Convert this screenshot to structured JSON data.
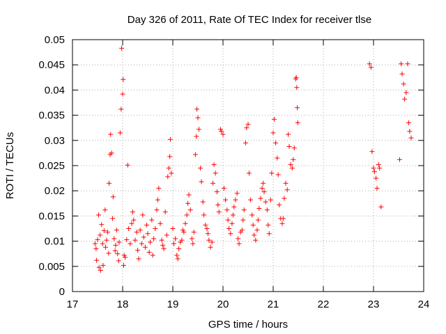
{
  "chart_data": {
    "type": "scatter",
    "title": "Day 326 of 2011, Rate Of TEC Index for receiver tlse",
    "xlabel": "GPS time / hours",
    "ylabel": "ROTI / TECUs",
    "xlim": [
      17,
      24
    ],
    "ylim": [
      0,
      0.05
    ],
    "x_ticks": [
      17,
      18,
      19,
      20,
      21,
      22,
      23,
      24
    ],
    "x_tick_labels": [
      "17",
      "18",
      "19",
      "20",
      "21",
      "22",
      "23",
      "24"
    ],
    "y_ticks": [
      0,
      0.005,
      0.01,
      0.015,
      0.02,
      0.025,
      0.03,
      0.035,
      0.04,
      0.045,
      0.05
    ],
    "y_tick_labels": [
      "0",
      "0.005",
      "0.01",
      "0.015",
      "0.02",
      "0.025",
      "0.03",
      "0.035",
      "0.04",
      "0.045",
      "0.05"
    ],
    "grid": true,
    "marker": "+",
    "marker_color": "#ff0000",
    "series": [
      {
        "name": "ROTI",
        "points": [
          [
            17.45,
            0.0095
          ],
          [
            17.47,
            0.0085
          ],
          [
            17.48,
            0.0062
          ],
          [
            17.5,
            0.0103
          ],
          [
            17.52,
            0.0152
          ],
          [
            17.53,
            0.0048
          ],
          [
            17.55,
            0.0112
          ],
          [
            17.56,
            0.0042
          ],
          [
            17.58,
            0.0133
          ],
          [
            17.6,
            0.0095
          ],
          [
            17.61,
            0.0052
          ],
          [
            17.63,
            0.0121
          ],
          [
            17.65,
            0.0162
          ],
          [
            17.66,
            0.0088
          ],
          [
            17.68,
            0.0102
          ],
          [
            17.7,
            0.0118
          ],
          [
            17.72,
            0.0076
          ],
          [
            17.73,
            0.0215
          ],
          [
            17.75,
            0.0272
          ],
          [
            17.76,
            0.0312
          ],
          [
            17.78,
            0.0275
          ],
          [
            17.8,
            0.0145
          ],
          [
            17.81,
            0.0188
          ],
          [
            17.83,
            0.0105
          ],
          [
            17.85,
            0.0081
          ],
          [
            17.86,
            0.0092
          ],
          [
            17.88,
            0.0122
          ],
          [
            17.9,
            0.0075
          ],
          [
            17.92,
            0.0061
          ],
          [
            17.93,
            0.0098
          ],
          [
            17.95,
            0.0315
          ],
          [
            17.97,
            0.0362
          ],
          [
            17.98,
            0.0483
          ],
          [
            18.0,
            0.0392
          ],
          [
            18.01,
            0.0421
          ],
          [
            18.02,
            0.0052
          ],
          [
            18.03,
            0.0072
          ],
          [
            18.05,
            0.0068
          ],
          [
            18.08,
            0.0103
          ],
          [
            18.1,
            0.0251
          ],
          [
            18.12,
            0.0125
          ],
          [
            18.15,
            0.0095
          ],
          [
            18.18,
            0.0135
          ],
          [
            18.2,
            0.0158
          ],
          [
            18.22,
            0.0142
          ],
          [
            18.25,
            0.0102
          ],
          [
            18.28,
            0.0118
          ],
          [
            18.3,
            0.0082
          ],
          [
            18.32,
            0.0065
          ],
          [
            18.35,
            0.0122
          ],
          [
            18.38,
            0.0095
          ],
          [
            18.4,
            0.0152
          ],
          [
            18.42,
            0.0108
          ],
          [
            18.45,
            0.0088
          ],
          [
            18.48,
            0.0132
          ],
          [
            18.5,
            0.0115
          ],
          [
            18.53,
            0.0078
          ],
          [
            18.55,
            0.0098
          ],
          [
            18.58,
            0.0142
          ],
          [
            18.6,
            0.0072
          ],
          [
            18.62,
            0.0105
          ],
          [
            18.65,
            0.0125
          ],
          [
            18.68,
            0.0162
          ],
          [
            18.7,
            0.0182
          ],
          [
            18.72,
            0.0205
          ],
          [
            18.75,
            0.0135
          ],
          [
            18.78,
            0.0102
          ],
          [
            18.8,
            0.0092
          ],
          [
            18.82,
            0.0085
          ],
          [
            18.85,
            0.0158
          ],
          [
            18.88,
            0.0112
          ],
          [
            18.9,
            0.0228
          ],
          [
            18.92,
            0.0245
          ],
          [
            18.94,
            0.0268
          ],
          [
            18.95,
            0.0302
          ],
          [
            18.97,
            0.0235
          ],
          [
            19.0,
            0.0125
          ],
          [
            19.02,
            0.0095
          ],
          [
            19.05,
            0.0105
          ],
          [
            19.08,
            0.0072
          ],
          [
            19.1,
            0.0065
          ],
          [
            19.12,
            0.0085
          ],
          [
            19.15,
            0.0098
          ],
          [
            19.18,
            0.0102
          ],
          [
            19.2,
            0.0122
          ],
          [
            19.22,
            0.0118
          ],
          [
            19.25,
            0.0135
          ],
          [
            19.28,
            0.0152
          ],
          [
            19.3,
            0.0175
          ],
          [
            19.32,
            0.0192
          ],
          [
            19.35,
            0.0162
          ],
          [
            19.38,
            0.0105
          ],
          [
            19.4,
            0.0095
          ],
          [
            19.42,
            0.0118
          ],
          [
            19.45,
            0.0272
          ],
          [
            19.47,
            0.0308
          ],
          [
            19.48,
            0.0362
          ],
          [
            19.5,
            0.0345
          ],
          [
            19.52,
            0.0322
          ],
          [
            19.55,
            0.0245
          ],
          [
            19.57,
            0.0218
          ],
          [
            19.6,
            0.0178
          ],
          [
            19.62,
            0.0152
          ],
          [
            19.65,
            0.0132
          ],
          [
            19.68,
            0.0125
          ],
          [
            19.7,
            0.0115
          ],
          [
            19.72,
            0.0102
          ],
          [
            19.75,
            0.0088
          ],
          [
            19.78,
            0.0098
          ],
          [
            19.8,
            0.0215
          ],
          [
            19.82,
            0.0252
          ],
          [
            19.85,
            0.0235
          ],
          [
            19.88,
            0.0198
          ],
          [
            19.9,
            0.0172
          ],
          [
            19.92,
            0.0158
          ],
          [
            19.95,
            0.0322
          ],
          [
            19.97,
            0.0318
          ],
          [
            20.0,
            0.0312
          ],
          [
            20.02,
            0.0205
          ],
          [
            20.05,
            0.0182
          ],
          [
            20.08,
            0.0162
          ],
          [
            20.1,
            0.0142
          ],
          [
            20.12,
            0.0125
          ],
          [
            20.15,
            0.0115
          ],
          [
            20.18,
            0.0135
          ],
          [
            20.2,
            0.0152
          ],
          [
            20.22,
            0.0168
          ],
          [
            20.25,
            0.0182
          ],
          [
            20.28,
            0.0195
          ],
          [
            20.3,
            0.0105
          ],
          [
            20.32,
            0.0095
          ],
          [
            20.35,
            0.0118
          ],
          [
            20.38,
            0.0122
          ],
          [
            20.4,
            0.0142
          ],
          [
            20.42,
            0.0162
          ],
          [
            20.45,
            0.0295
          ],
          [
            20.47,
            0.0325
          ],
          [
            20.5,
            0.0332
          ],
          [
            20.52,
            0.0235
          ],
          [
            20.55,
            0.0182
          ],
          [
            20.58,
            0.0152
          ],
          [
            20.6,
            0.0132
          ],
          [
            20.62,
            0.0112
          ],
          [
            20.65,
            0.0102
          ],
          [
            20.68,
            0.0122
          ],
          [
            20.7,
            0.0142
          ],
          [
            20.72,
            0.0165
          ],
          [
            20.75,
            0.0185
          ],
          [
            20.78,
            0.0205
          ],
          [
            20.8,
            0.0215
          ],
          [
            20.82,
            0.0198
          ],
          [
            20.85,
            0.0178
          ],
          [
            20.88,
            0.0162
          ],
          [
            20.9,
            0.0132
          ],
          [
            20.92,
            0.0115
          ],
          [
            20.95,
            0.0182
          ],
          [
            20.97,
            0.0235
          ],
          [
            21.0,
            0.0315
          ],
          [
            21.02,
            0.0342
          ],
          [
            21.05,
            0.0295
          ],
          [
            21.08,
            0.0265
          ],
          [
            21.1,
            0.0232
          ],
          [
            21.12,
            0.0172
          ],
          [
            21.15,
            0.0145
          ],
          [
            21.18,
            0.0135
          ],
          [
            21.2,
            0.0145
          ],
          [
            21.22,
            0.0185
          ],
          [
            21.25,
            0.0215
          ],
          [
            21.28,
            0.0202
          ],
          [
            21.3,
            0.0312
          ],
          [
            21.32,
            0.0288
          ],
          [
            21.35,
            0.0252
          ],
          [
            21.38,
            0.0245
          ],
          [
            21.4,
            0.0262
          ],
          [
            21.42,
            0.0285
          ],
          [
            21.45,
            0.0422
          ],
          [
            21.46,
            0.0425
          ],
          [
            21.47,
            0.0405
          ],
          [
            21.48,
            0.0365
          ],
          [
            21.49,
            0.0335
          ],
          [
            22.92,
            0.0452
          ],
          [
            22.95,
            0.0445
          ],
          [
            22.97,
            0.0278
          ],
          [
            23.0,
            0.0245
          ],
          [
            23.02,
            0.0238
          ],
          [
            23.05,
            0.0225
          ],
          [
            23.07,
            0.0205
          ],
          [
            23.1,
            0.0252
          ],
          [
            23.12,
            0.0245
          ],
          [
            23.15,
            0.0168
          ],
          [
            23.52,
            0.0262
          ],
          [
            23.55,
            0.0452
          ],
          [
            23.57,
            0.0432
          ],
          [
            23.6,
            0.0412
          ],
          [
            23.62,
            0.0382
          ],
          [
            23.65,
            0.0395
          ],
          [
            23.68,
            0.0452
          ],
          [
            23.7,
            0.0335
          ],
          [
            23.72,
            0.0318
          ],
          [
            23.75,
            0.0305
          ]
        ]
      }
    ]
  }
}
